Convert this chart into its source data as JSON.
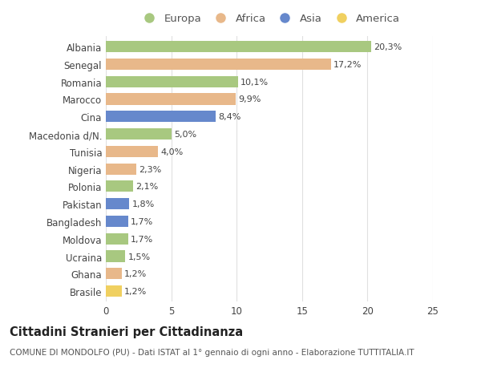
{
  "categories": [
    "Albania",
    "Senegal",
    "Romania",
    "Marocco",
    "Cina",
    "Macedonia d/N.",
    "Tunisia",
    "Nigeria",
    "Polonia",
    "Pakistan",
    "Bangladesh",
    "Moldova",
    "Ucraina",
    "Ghana",
    "Brasile"
  ],
  "values": [
    20.3,
    17.2,
    10.1,
    9.9,
    8.4,
    5.0,
    4.0,
    2.3,
    2.1,
    1.8,
    1.7,
    1.7,
    1.5,
    1.2,
    1.2
  ],
  "labels": [
    "20,3%",
    "17,2%",
    "10,1%",
    "9,9%",
    "8,4%",
    "5,0%",
    "4,0%",
    "2,3%",
    "2,1%",
    "1,8%",
    "1,7%",
    "1,7%",
    "1,5%",
    "1,2%",
    "1,2%"
  ],
  "continents": [
    "Europa",
    "Africa",
    "Europa",
    "Africa",
    "Asia",
    "Europa",
    "Africa",
    "Africa",
    "Europa",
    "Asia",
    "Asia",
    "Europa",
    "Europa",
    "Africa",
    "America"
  ],
  "continent_colors": {
    "Europa": "#a8c880",
    "Africa": "#e8b88a",
    "Asia": "#6688cc",
    "America": "#f0d060"
  },
  "legend_order": [
    "Europa",
    "Africa",
    "Asia",
    "America"
  ],
  "title": "Cittadini Stranieri per Cittadinanza",
  "subtitle": "COMUNE DI MONDOLFO (PU) - Dati ISTAT al 1° gennaio di ogni anno - Elaborazione TUTTITALIA.IT",
  "xlim": [
    0,
    25
  ],
  "xticks": [
    0,
    5,
    10,
    15,
    20,
    25
  ],
  "background_color": "#ffffff",
  "grid_color": "#e0e0e0",
  "bar_height": 0.65,
  "title_fontsize": 10.5,
  "subtitle_fontsize": 7.5,
  "label_fontsize": 8,
  "tick_fontsize": 8.5,
  "legend_fontsize": 9.5
}
